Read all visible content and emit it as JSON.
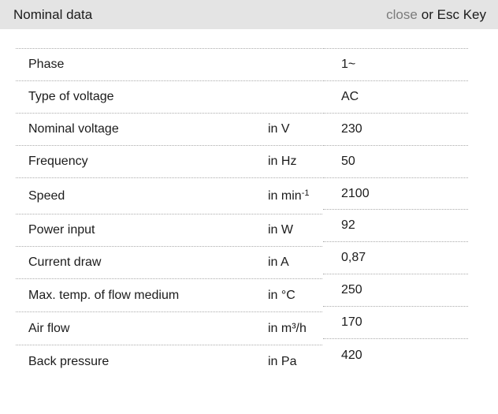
{
  "header": {
    "title": "Nominal data",
    "close_label": "close",
    "close_suffix": "or Esc Key"
  },
  "table": {
    "rows": [
      {
        "label": "Phase",
        "unit": "",
        "unit_sup": "",
        "value": "1~"
      },
      {
        "label": "Type of voltage",
        "unit": "",
        "unit_sup": "",
        "value": "AC"
      },
      {
        "label": "Nominal voltage",
        "unit": "in V",
        "unit_sup": "",
        "value": "230"
      },
      {
        "label": "Frequency",
        "unit": "in Hz",
        "unit_sup": "",
        "value": "50"
      },
      {
        "label": "Speed",
        "unit": "in min",
        "unit_sup": "-1",
        "value": "2100"
      },
      {
        "label": "Power input",
        "unit": "in W",
        "unit_sup": "",
        "value": "92"
      },
      {
        "label": "Current draw",
        "unit": "in A",
        "unit_sup": "",
        "value": "0,87"
      },
      {
        "label": "Max. temp. of flow medium",
        "unit": "in °C",
        "unit_sup": "",
        "value": "250"
      },
      {
        "label": "Air flow",
        "unit": "in m³/h",
        "unit_sup": "",
        "value": "170"
      },
      {
        "label": "Back pressure",
        "unit": "in Pa",
        "unit_sup": "",
        "value": "420"
      }
    ]
  },
  "colors": {
    "header_bg": "#e4e4e4",
    "text": "#1b1b1b",
    "close_link": "#7b7b7b",
    "divider": "#ababab",
    "background": "#ffffff"
  }
}
